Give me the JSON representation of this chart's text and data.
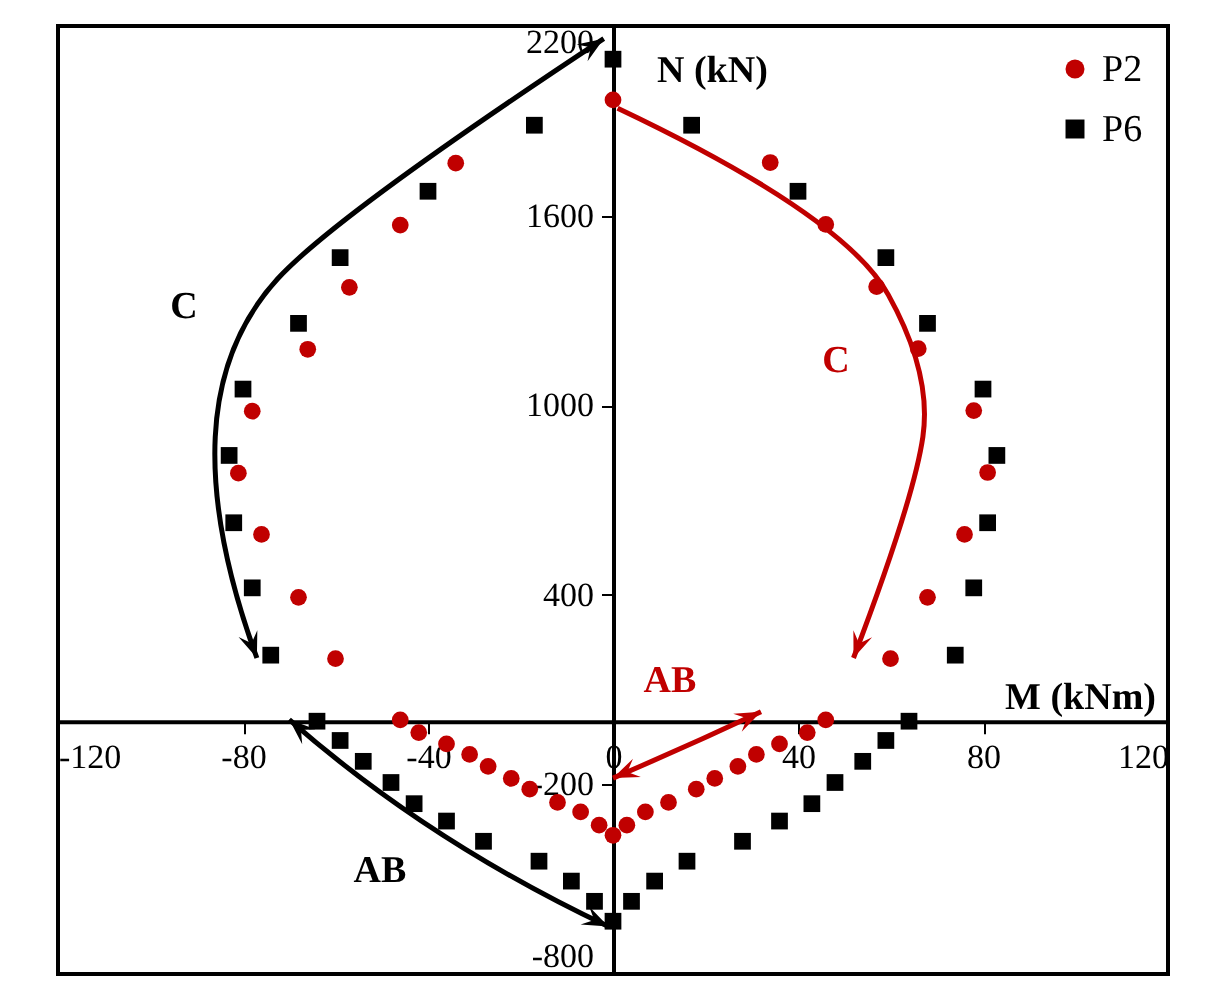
{
  "chart_data": {
    "type": "scatter",
    "xlabel": "M (kNm)",
    "ylabel": "N (kN)",
    "xlim": [
      -120,
      120
    ],
    "ylim": [
      -800,
      2200
    ],
    "xticks": [
      -120,
      -80,
      -40,
      0,
      40,
      80,
      120
    ],
    "yticks": [
      -800,
      -200,
      400,
      1000,
      1600,
      2200
    ],
    "grid": false,
    "legend": "top right",
    "series": [
      {
        "name": "P2",
        "color": "#c00000",
        "marker": "circle",
        "x": [
          0,
          34,
          46,
          57,
          66,
          78,
          81,
          76,
          68,
          60,
          46,
          42,
          36,
          31,
          27,
          22,
          18,
          12,
          7,
          3,
          0,
          -3,
          -7,
          -12,
          -18,
          -22,
          -27,
          -31,
          -36,
          -42,
          -46,
          -60,
          -68,
          -76,
          -81,
          -78,
          -66,
          -57,
          -46,
          -34
        ],
        "values": [
          1966,
          1768,
          1572,
          1375,
          1179,
          983,
          787,
          591,
          392,
          198,
          4,
          -36,
          -72,
          -105,
          -143,
          -181,
          -215,
          -257,
          -287,
          -329,
          -361,
          -329,
          -287,
          -257,
          -215,
          -181,
          -143,
          -105,
          -72,
          -36,
          4,
          198,
          392,
          591,
          785,
          981,
          1177,
          1373,
          1570,
          1766
        ]
      },
      {
        "name": "P6",
        "color": "#000000",
        "marker": "square",
        "x": [
          0,
          17,
          40,
          59,
          68,
          80,
          83,
          81,
          78,
          74,
          64,
          59,
          54,
          48,
          43,
          36,
          28,
          16,
          9,
          4,
          0,
          -4,
          -9,
          -16,
          -28,
          -36,
          -43,
          -48,
          -54,
          -59,
          -64,
          -74,
          -78,
          -82,
          -83,
          -80,
          -68,
          -59,
          -40,
          -17
        ],
        "values": [
          2095,
          1886,
          1677,
          1467,
          1259,
          1051,
          841,
          628,
          422,
          209,
          0,
          -61,
          -127,
          -194,
          -261,
          -316,
          -380,
          -443,
          -506,
          -570,
          -633,
          -570,
          -506,
          -443,
          -380,
          -316,
          -261,
          -194,
          -127,
          -61,
          0,
          209,
          422,
          628,
          841,
          1051,
          1259,
          1467,
          1677,
          1886
        ]
      }
    ],
    "annotations": [
      "C",
      "C",
      "AB",
      "AB"
    ]
  }
}
